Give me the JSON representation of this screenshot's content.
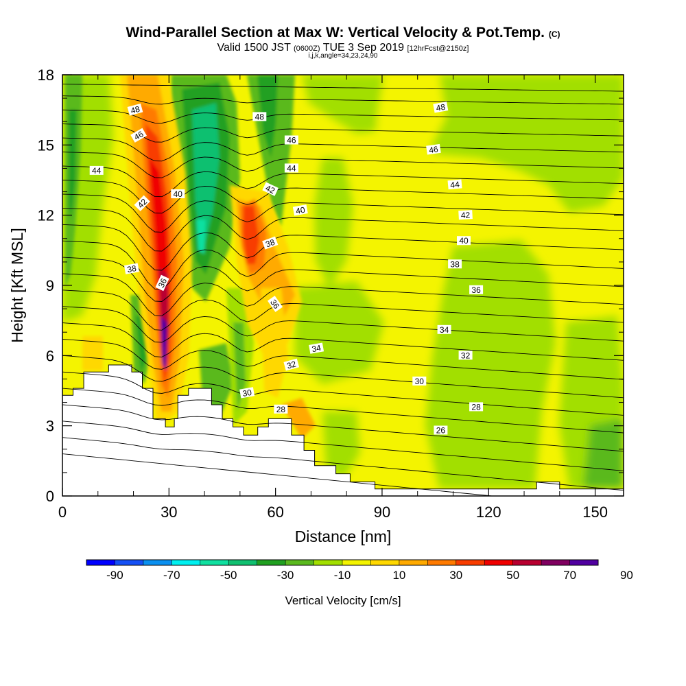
{
  "header": {
    "title_main": "Wind-Parallel Section at Max W: Vertical Velocity & Pot.Temp.",
    "title_mark": "(C)",
    "valid_prefix": "Valid 1500 JST",
    "valid_utc": "(0600Z)",
    "valid_date": "TUE 3 Sep 2019",
    "valid_fcst": "[12hrFcst@2150z]",
    "params": "i,j,k,angle=34,23,24,90"
  },
  "chart_data": {
    "type": "heatmap",
    "xlabel": "Distance [nm]",
    "ylabel": "Height [Kft MSL]",
    "xlim": [
      0,
      158
    ],
    "ylim": [
      0,
      18
    ],
    "x_ticks": [
      0,
      30,
      60,
      90,
      120,
      150
    ],
    "x_tick_labels": [
      "0",
      "30",
      "60",
      "90",
      "120",
      "150"
    ],
    "y_ticks": [
      0,
      3,
      6,
      9,
      12,
      15,
      18
    ],
    "y_tick_labels": [
      "0",
      "3",
      "6",
      "9",
      "12",
      "15",
      "18"
    ],
    "colorbar": {
      "label": "Vertical Velocity [cm/s]",
      "tick_labels": [
        "-90",
        "-70",
        "-50",
        "-30",
        "-10",
        "10",
        "30",
        "50",
        "70",
        "90"
      ],
      "colors": [
        "#0000ff",
        "#1550f5",
        "#0a90f0",
        "#00f0f0",
        "#10e0a0",
        "#10c070",
        "#20a020",
        "#5ab91e",
        "#a2df00",
        "#f4f400",
        "#ffd800",
        "#ffaa00",
        "#ff7a00",
        "#f83c00",
        "#f00000",
        "#b80030",
        "#800060",
        "#5000a0"
      ]
    },
    "theta_contour_labels": [
      {
        "text": "48",
        "x": 20.5,
        "y": 16.5,
        "angle": -15
      },
      {
        "text": "48",
        "x": 55.5,
        "y": 16.2,
        "angle": 0
      },
      {
        "text": "48",
        "x": 106.5,
        "y": 16.6,
        "angle": -10
      },
      {
        "text": "46",
        "x": 21.5,
        "y": 15.4,
        "angle": -30
      },
      {
        "text": "46",
        "x": 64.5,
        "y": 15.2,
        "angle": 0
      },
      {
        "text": "46",
        "x": 104.5,
        "y": 14.8,
        "angle": -8
      },
      {
        "text": "44",
        "x": 9.6,
        "y": 13.9,
        "angle": 0
      },
      {
        "text": "44",
        "x": 64.5,
        "y": 14.0,
        "angle": 0
      },
      {
        "text": "44",
        "x": 110.5,
        "y": 13.3,
        "angle": -5
      },
      {
        "text": "42",
        "x": 58.5,
        "y": 13.1,
        "angle": 25
      },
      {
        "text": "42",
        "x": 22.5,
        "y": 12.5,
        "angle": -45
      },
      {
        "text": "42",
        "x": 113.5,
        "y": 12.0,
        "angle": -3
      },
      {
        "text": "40",
        "x": 32.5,
        "y": 12.9,
        "angle": 0
      },
      {
        "text": "40",
        "x": 67.0,
        "y": 12.2,
        "angle": -10
      },
      {
        "text": "40",
        "x": 113.0,
        "y": 10.9,
        "angle": 0
      },
      {
        "text": "38",
        "x": 58.5,
        "y": 10.8,
        "angle": -20
      },
      {
        "text": "38",
        "x": 19.5,
        "y": 9.7,
        "angle": -10
      },
      {
        "text": "38",
        "x": 110.5,
        "y": 9.9,
        "angle": 0
      },
      {
        "text": "36",
        "x": 28.2,
        "y": 9.1,
        "angle": -65
      },
      {
        "text": "36",
        "x": 59.8,
        "y": 8.2,
        "angle": 55
      },
      {
        "text": "36",
        "x": 116.5,
        "y": 8.8,
        "angle": 0
      },
      {
        "text": "34",
        "x": 71.5,
        "y": 6.3,
        "angle": -10
      },
      {
        "text": "34",
        "x": 107.5,
        "y": 7.1,
        "angle": 0
      },
      {
        "text": "32",
        "x": 64.5,
        "y": 5.6,
        "angle": -15
      },
      {
        "text": "32",
        "x": 113.5,
        "y": 6.0,
        "angle": 0
      },
      {
        "text": "30",
        "x": 52.0,
        "y": 4.4,
        "angle": -10
      },
      {
        "text": "30",
        "x": 100.5,
        "y": 4.9,
        "angle": 0
      },
      {
        "text": "28",
        "x": 61.5,
        "y": 3.7,
        "angle": 0
      },
      {
        "text": "28",
        "x": 116.5,
        "y": 3.8,
        "angle": 0
      },
      {
        "text": "26",
        "x": 106.5,
        "y": 2.8,
        "angle": 0
      }
    ],
    "terrain": [
      [
        0,
        4.3
      ],
      [
        3,
        4.3
      ],
      [
        3,
        4.6
      ],
      [
        6,
        4.6
      ],
      [
        6,
        5.3
      ],
      [
        13,
        5.3
      ],
      [
        13,
        5.6
      ],
      [
        19.5,
        5.6
      ],
      [
        19.5,
        5.3
      ],
      [
        22.5,
        5.3
      ],
      [
        22.5,
        4.6
      ],
      [
        25.5,
        4.6
      ],
      [
        25.5,
        3.3
      ],
      [
        29,
        3.3
      ],
      [
        29,
        2.95
      ],
      [
        31.5,
        2.95
      ],
      [
        31.5,
        3.3
      ],
      [
        32.5,
        3.3
      ],
      [
        32.5,
        4.3
      ],
      [
        35.5,
        4.3
      ],
      [
        35.5,
        4.6
      ],
      [
        42,
        4.6
      ],
      [
        42,
        3.9
      ],
      [
        45,
        3.9
      ],
      [
        45,
        3.3
      ],
      [
        48,
        3.3
      ],
      [
        48,
        2.95
      ],
      [
        51,
        2.95
      ],
      [
        51,
        2.6
      ],
      [
        55,
        2.6
      ],
      [
        55,
        2.95
      ],
      [
        58,
        2.95
      ],
      [
        58,
        3.3
      ],
      [
        64.5,
        3.3
      ],
      [
        64.5,
        2.6
      ],
      [
        68,
        2.6
      ],
      [
        68,
        1.95
      ],
      [
        71,
        1.95
      ],
      [
        71,
        1.3
      ],
      [
        77,
        1.3
      ],
      [
        77,
        0.95
      ],
      [
        81,
        0.95
      ],
      [
        81,
        0.6
      ],
      [
        88,
        0.6
      ],
      [
        88,
        0.3
      ],
      [
        133.5,
        0.3
      ],
      [
        133.5,
        0.6
      ],
      [
        140,
        0.6
      ],
      [
        140,
        0.3
      ],
      [
        158,
        0.3
      ]
    ]
  }
}
